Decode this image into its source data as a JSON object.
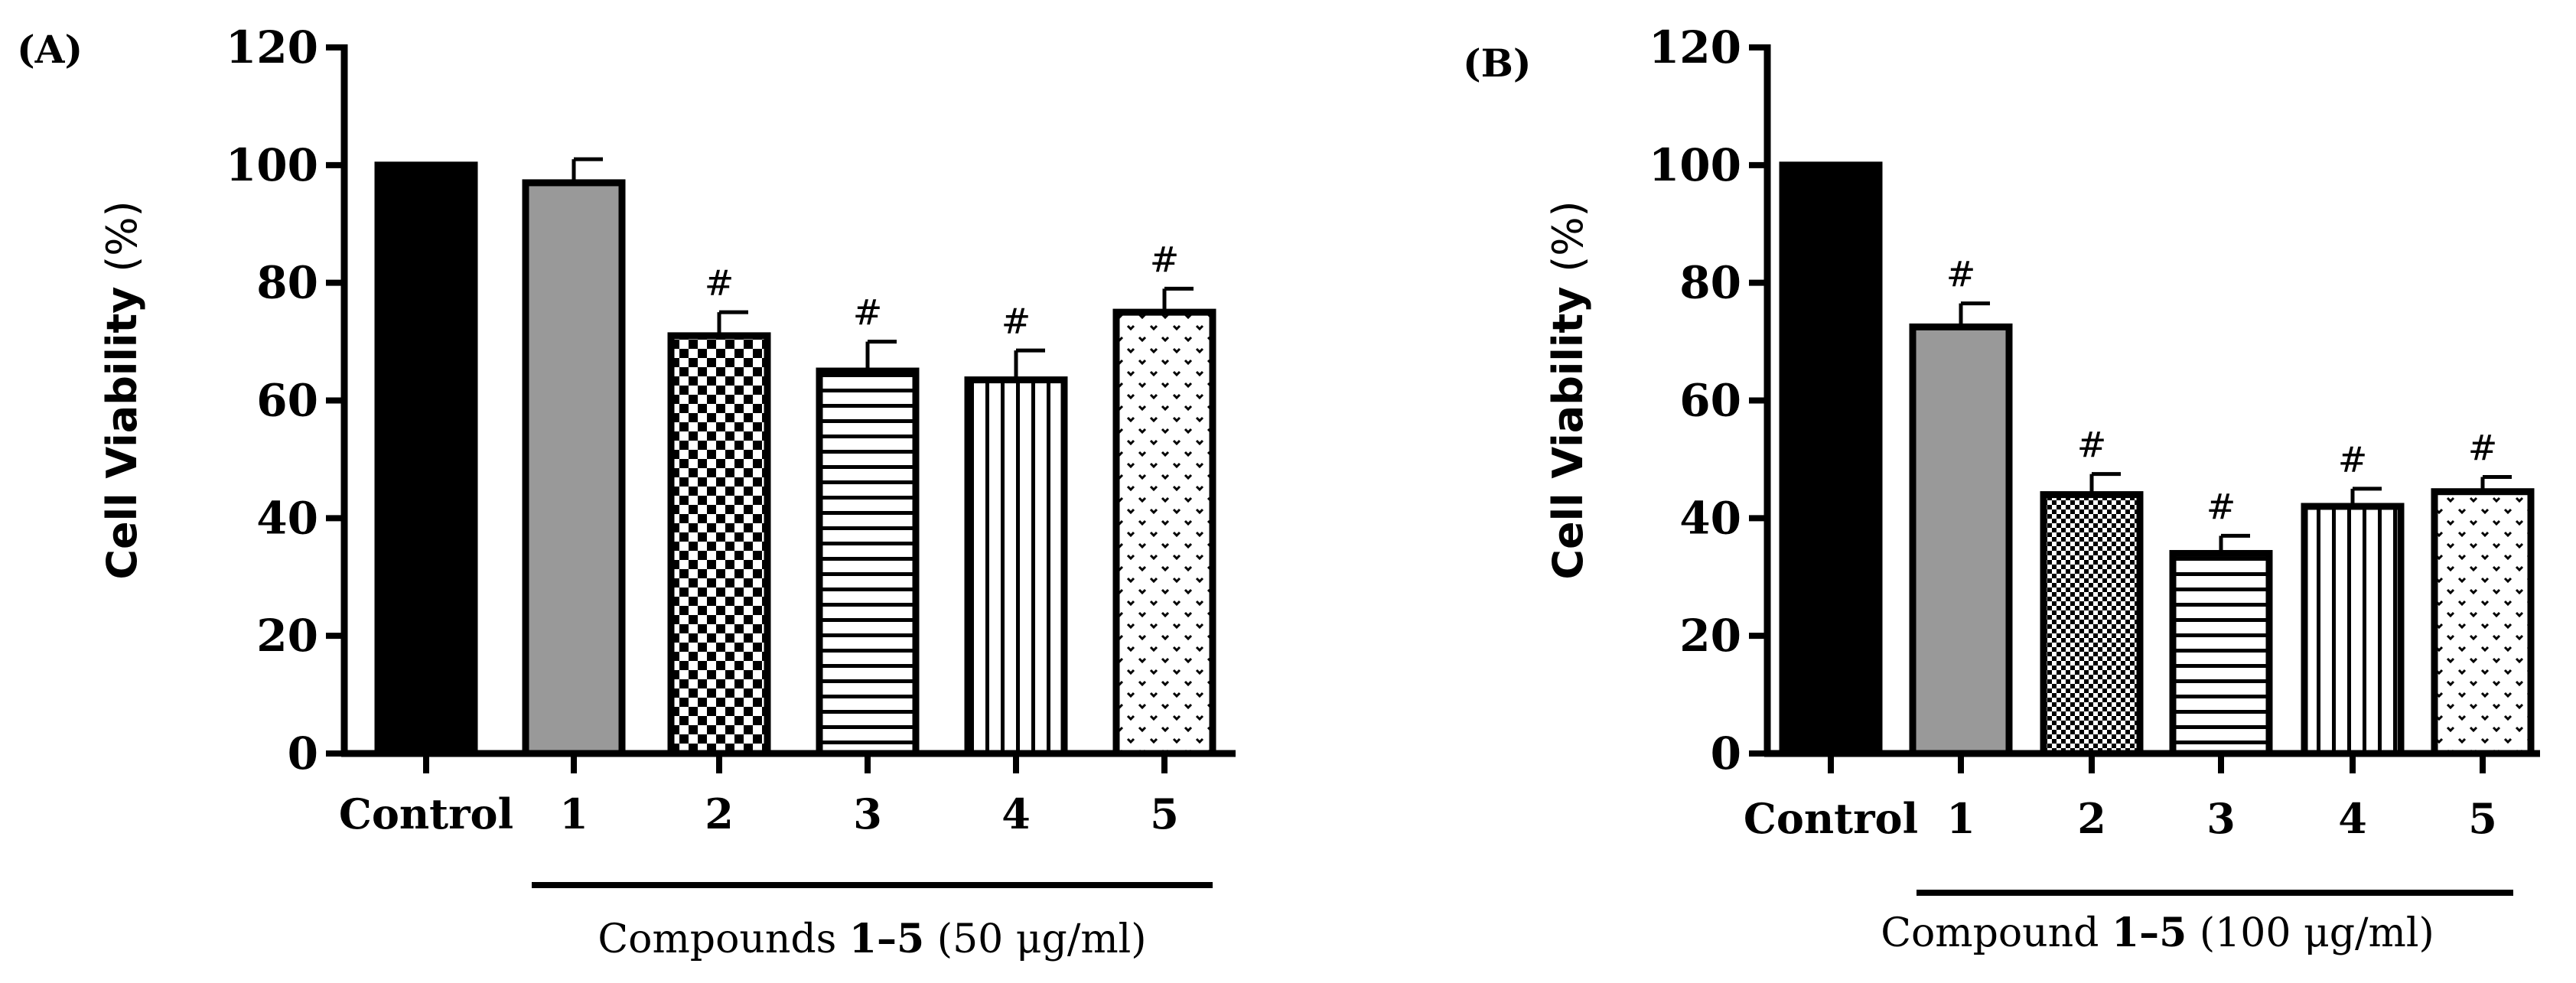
{
  "patterns": {
    "fill-black": "#000000",
    "fill-gray": "#999999",
    "checker": "checker",
    "fine-checker": "fine-checker",
    "hstripes": "hstripes",
    "vstripes": "vstripes",
    "dots": "dots"
  },
  "chart_data": [
    {
      "type": "bar",
      "panel_label": "(A)",
      "ylabel_main": "Cell Viability ",
      "ylabel_unit": "(%)",
      "ylim": [
        0,
        120
      ],
      "yticks": [
        "0",
        "20",
        "40",
        "60",
        "80",
        "100",
        "120"
      ],
      "categories": [
        "Control",
        "1",
        "2",
        "3",
        "4",
        "5"
      ],
      "values": [
        100,
        97,
        71,
        65,
        63.5,
        75
      ],
      "errors": [
        0,
        4,
        4,
        5,
        5,
        4
      ],
      "significance": [
        "",
        "",
        "#",
        "#",
        "#",
        "#"
      ],
      "fills": [
        "fill-black",
        "fill-gray",
        "checker",
        "hstripes",
        "vstripes",
        "dots"
      ],
      "bracket_prefix": "Compounds ",
      "bracket_bold": "1–5",
      "bracket_suffix": " (50 μg/ml)"
    },
    {
      "type": "bar",
      "panel_label": "(B)",
      "ylabel_main": "Cell Viability ",
      "ylabel_unit": "(%)",
      "ylim": [
        0,
        120
      ],
      "yticks": [
        "0",
        "20",
        "40",
        "60",
        "80",
        "100",
        "120"
      ],
      "categories": [
        "Control",
        "1",
        "2",
        "3",
        "4",
        "5"
      ],
      "values": [
        100,
        72.5,
        44,
        34,
        42,
        44.5
      ],
      "errors": [
        0,
        4,
        3.5,
        3,
        3,
        2.5
      ],
      "significance": [
        "",
        "#",
        "#",
        "#",
        "#",
        "#"
      ],
      "fills": [
        "fill-black",
        "fill-gray",
        "fine-checker",
        "hstripes",
        "vstripes",
        "dots"
      ],
      "bracket_prefix": "Compound ",
      "bracket_bold": "1–5",
      "bracket_suffix": " (100 μg/ml)"
    }
  ]
}
